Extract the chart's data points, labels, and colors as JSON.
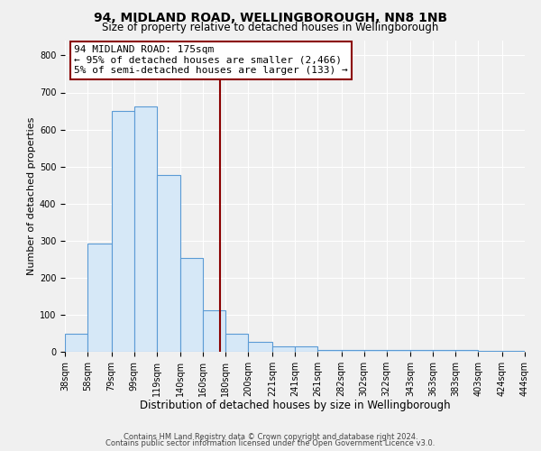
{
  "title": "94, MIDLAND ROAD, WELLINGBOROUGH, NN8 1NB",
  "subtitle": "Size of property relative to detached houses in Wellingborough",
  "xlabel": "Distribution of detached houses by size in Wellingborough",
  "ylabel": "Number of detached properties",
  "bar_edges": [
    38,
    58,
    79,
    99,
    119,
    140,
    160,
    180,
    200,
    221,
    241,
    261,
    282,
    302,
    322,
    343,
    363,
    383,
    403,
    424,
    444
  ],
  "bar_heights": [
    48,
    293,
    651,
    663,
    477,
    254,
    113,
    48,
    28,
    14,
    14,
    5,
    5,
    5,
    5,
    5,
    5,
    5,
    2,
    2,
    0
  ],
  "bar_color": "#d6e8f7",
  "bar_edge_color": "#5b9bd5",
  "vline_x": 175,
  "vline_color": "#8b0000",
  "annotation_line1": "94 MIDLAND ROAD: 175sqm",
  "annotation_line2": "← 95% of detached houses are smaller (2,466)",
  "annotation_line3": "5% of semi-detached houses are larger (133) →",
  "annotation_box_color": "#ffffff",
  "annotation_box_edge_color": "#8b0000",
  "xlim": [
    38,
    444
  ],
  "ylim": [
    0,
    840
  ],
  "tick_labels": [
    "38sqm",
    "58sqm",
    "79sqm",
    "99sqm",
    "119sqm",
    "140sqm",
    "160sqm",
    "180sqm",
    "200sqm",
    "221sqm",
    "241sqm",
    "261sqm",
    "282sqm",
    "302sqm",
    "322sqm",
    "343sqm",
    "363sqm",
    "383sqm",
    "403sqm",
    "424sqm",
    "444sqm"
  ],
  "tick_positions": [
    38,
    58,
    79,
    99,
    119,
    140,
    160,
    180,
    200,
    221,
    241,
    261,
    282,
    302,
    322,
    343,
    363,
    383,
    403,
    424,
    444
  ],
  "yticks": [
    0,
    100,
    200,
    300,
    400,
    500,
    600,
    700,
    800
  ],
  "footer1": "Contains HM Land Registry data © Crown copyright and database right 2024.",
  "footer2": "Contains public sector information licensed under the Open Government Licence v3.0.",
  "bg_color": "#f0f0f0",
  "grid_color": "#ffffff",
  "title_fontsize": 10,
  "subtitle_fontsize": 8.5,
  "xlabel_fontsize": 8.5,
  "ylabel_fontsize": 8,
  "tick_fontsize": 7,
  "annotation_fontsize": 8,
  "footer_fontsize": 6
}
